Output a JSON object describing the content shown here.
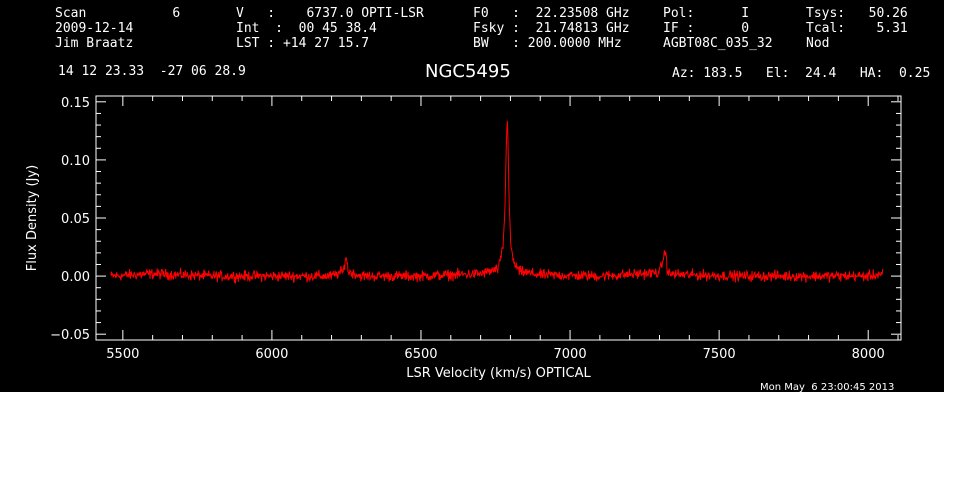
{
  "header": {
    "col1": [
      "Scan           6",
      "2009-12-14",
      "Jim Braatz"
    ],
    "col2": [
      "V   :    6737.0 OPTI-LSR",
      "Int  :  00 45 38.4",
      "LST : +14 27 15.7"
    ],
    "col3": [
      "F0   :  22.23508 GHz",
      "Fsky :  21.74813 GHz",
      "BW   : 200.0000 MHz"
    ],
    "col4": [
      "Pol:      I",
      "IF :      0",
      "AGBT08C_035_32"
    ],
    "col5": [
      "Tsys:   50.26",
      "Tcal:    5.31",
      "Nod"
    ],
    "coords": "14 12 23.33  -27 06 28.9",
    "source": "NGC5495",
    "azelha": "Az: 183.5   El:  24.4   HA:  0.25",
    "timestamp": "Mon May  6 23:00:45 2013"
  },
  "colors": {
    "background": "#000000",
    "axes": "#ffffff",
    "trace": "#ff0000"
  },
  "chart_data": {
    "type": "line",
    "xlabel": "LSR Velocity (km/s) OPTICAL",
    "ylabel": "Flux Density (Jy)",
    "xlim": [
      5410,
      8110
    ],
    "ylim": [
      -0.055,
      0.155
    ],
    "xticks": [
      5500,
      6000,
      6500,
      7000,
      7500,
      8000
    ],
    "xtick_labels": [
      "5500",
      "6000",
      "6500",
      "7000",
      "7500",
      "8000"
    ],
    "yticks": [
      -0.05,
      0.0,
      0.05,
      0.1,
      0.15
    ],
    "ytick_labels": [
      "−0.05",
      "0.00",
      "0.05",
      "0.10",
      "0.15"
    ],
    "grid": false,
    "series": [
      {
        "x": [
          5460,
          5600,
          5800,
          6000,
          6200,
          6240,
          6248,
          6256,
          6300,
          6500,
          6700,
          6760,
          6775,
          6782,
          6786,
          6789,
          6792,
          6795,
          6800,
          6810,
          6830,
          6900,
          7100,
          7300,
          7320,
          7326,
          7332,
          7400,
          7600,
          7800,
          8000,
          8050
        ],
        "y": [
          0.0,
          0.002,
          0.0,
          0.0,
          0.0,
          0.004,
          0.018,
          0.004,
          0.0,
          0.0,
          0.002,
          0.006,
          0.025,
          0.06,
          0.11,
          0.14,
          0.12,
          0.07,
          0.03,
          0.012,
          0.004,
          0.001,
          0.0,
          0.003,
          0.022,
          0.006,
          0.002,
          0.001,
          0.0,
          0.0,
          0.0,
          0.002
        ]
      }
    ]
  }
}
